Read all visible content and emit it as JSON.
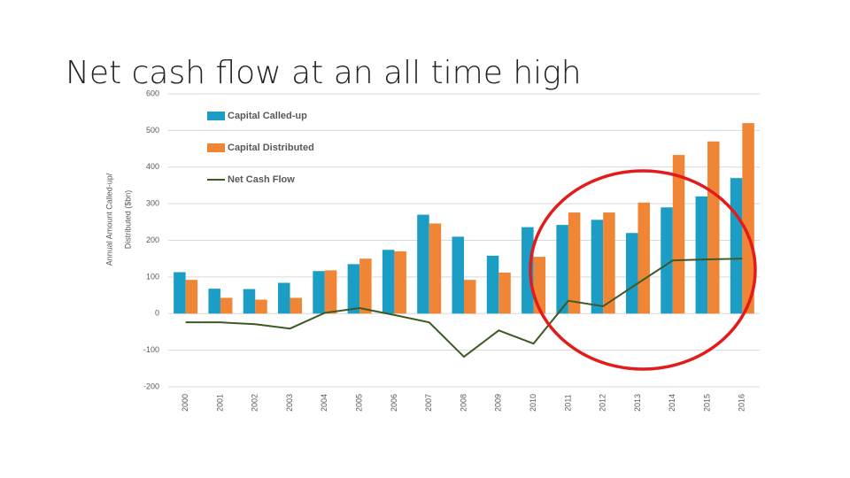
{
  "chart_data": {
    "type": "bar",
    "title": "Net cash flow at an all time high",
    "y_label": [
      "Annual Amount Called-up/",
      "Distributed ($bn)"
    ],
    "categories": [
      "2000",
      "2001",
      "2002",
      "2003",
      "2004",
      "2005",
      "2006",
      "2007",
      "2008",
      "2009",
      "2010",
      "2011",
      "2012",
      "2013",
      "2014",
      "2015",
      "2016"
    ],
    "series": [
      {
        "name": "Capital Called-up",
        "type": "bar",
        "color": "#1b9dc5",
        "values": [
          113,
          68,
          67,
          84,
          116,
          135,
          174,
          270,
          210,
          158,
          236,
          242,
          256,
          220,
          290,
          320,
          370
        ]
      },
      {
        "name": "Capital Distributed",
        "type": "bar",
        "color": "#f08536",
        "values": [
          92,
          43,
          38,
          43,
          118,
          150,
          170,
          246,
          92,
          112,
          155,
          276,
          276,
          303,
          433,
          470,
          520
        ]
      },
      {
        "name": "Net Cash Flow",
        "type": "line",
        "color": "#3d5a22",
        "values": [
          -24,
          -24,
          -29,
          -41,
          2,
          15,
          -4,
          -24,
          -118,
          -46,
          -82,
          35,
          20,
          83,
          145,
          148,
          150
        ]
      }
    ],
    "ylim": [
      -200,
      600
    ],
    "yticks": [
      -200,
      -100,
      0,
      100,
      200,
      300,
      400,
      500,
      600
    ],
    "grid": true,
    "legend": "upper left"
  }
}
